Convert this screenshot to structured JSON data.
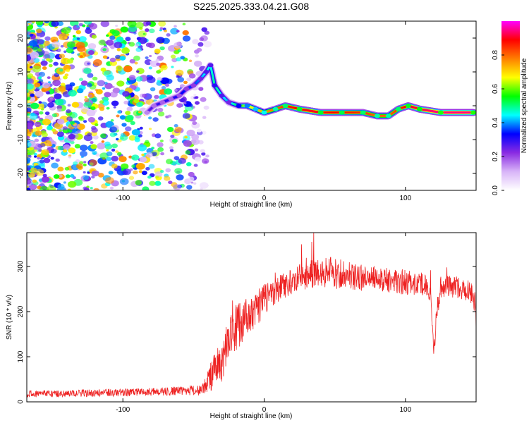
{
  "title": "S225.2025.333.04.21.G08",
  "chart_data": [
    {
      "type": "heatmap",
      "name": "spectrogram",
      "xlabel": "Height of straight line (km)",
      "ylabel": "Frequency (Hz)",
      "xlim": [
        -168,
        150
      ],
      "ylim": [
        -25,
        25
      ],
      "x_ticks": [
        -100,
        0,
        100
      ],
      "y_ticks": [
        20,
        10,
        0,
        -10,
        -20
      ],
      "x_tick_labels": [
        "-100",
        "0",
        "100"
      ],
      "y_tick_labels": [
        "20",
        "10",
        "0",
        "-10",
        "-20"
      ],
      "colorbar": {
        "label": "Normalized spectral amplitude",
        "range": [
          0,
          1
        ],
        "ticks": [
          0.0,
          0.2,
          0.4,
          0.6,
          0.8
        ],
        "tick_labels": [
          "0.0",
          "0.2",
          "0.4",
          "0.6",
          "0.8"
        ],
        "colors": [
          "#ffffff",
          "#d8b4f8",
          "#8a2be2",
          "#0000ff",
          "#00ffff",
          "#00ff00",
          "#ffff00",
          "#ff7f00",
          "#ff0000",
          "#ff00ff"
        ]
      },
      "noise_region_x": [
        -168,
        -52
      ],
      "noise_amplitude": 0.25,
      "ridge": {
        "x": [
          -83,
          -78,
          -72,
          -66,
          -60,
          -55,
          -50,
          -45,
          -41,
          -38,
          -35,
          -30,
          -25,
          -18,
          -12,
          -6,
          0,
          8,
          15,
          25,
          40,
          55,
          70,
          80,
          88,
          95,
          102,
          110,
          125,
          148
        ],
        "frequency": [
          -2,
          0,
          1,
          2,
          3,
          5,
          6,
          8,
          10,
          12,
          6,
          3,
          1,
          0,
          0,
          -1,
          -2,
          -1,
          0,
          -1,
          -2,
          -2,
          -2,
          -3,
          -3,
          -1,
          0,
          -1,
          -2,
          -2
        ],
        "amplitude": [
          0.25,
          0.28,
          0.3,
          0.3,
          0.32,
          0.35,
          0.35,
          0.4,
          0.45,
          0.45,
          0.5,
          0.45,
          0.4,
          0.55,
          0.65,
          0.7,
          0.75,
          0.8,
          0.85,
          0.9,
          0.9,
          0.88,
          0.85,
          0.8,
          0.8,
          0.85,
          0.9,
          0.92,
          0.95,
          0.95
        ]
      }
    },
    {
      "type": "line",
      "name": "snr",
      "xlabel": "Height of straight line (km)",
      "ylabel": "SNR (10 * v/v)",
      "xlim": [
        -168,
        150
      ],
      "ylim": [
        0,
        375
      ],
      "x_ticks": [
        -100,
        0,
        100
      ],
      "y_ticks": [
        0,
        100,
        200,
        300
      ],
      "x_tick_labels": [
        "-100",
        "0",
        "100"
      ],
      "y_tick_labels": [
        "0",
        "100",
        "200",
        "300"
      ],
      "color": "#ee2222",
      "series": [
        {
          "name": "SNR",
          "x": [
            -168,
            -140,
            -110,
            -80,
            -60,
            -45,
            -40,
            -35,
            -30,
            -25,
            -20,
            -15,
            -10,
            -5,
            0,
            5,
            10,
            20,
            30,
            40,
            50,
            60,
            70,
            80,
            90,
            100,
            110,
            115,
            118,
            120,
            122,
            125,
            130,
            140,
            145,
            148,
            150
          ],
          "mean": [
            18,
            18,
            20,
            22,
            24,
            26,
            45,
            70,
            90,
            140,
            165,
            180,
            195,
            210,
            225,
            240,
            250,
            270,
            285,
            290,
            285,
            280,
            275,
            272,
            268,
            265,
            262,
            260,
            230,
            100,
            200,
            255,
            258,
            250,
            245,
            240,
            190
          ],
          "noise": [
            8,
            8,
            8,
            9,
            10,
            12,
            25,
            40,
            45,
            50,
            55,
            50,
            45,
            40,
            35,
            30,
            30,
            30,
            35,
            35,
            35,
            30,
            30,
            28,
            28,
            28,
            25,
            25,
            25,
            20,
            25,
            25,
            25,
            25,
            25,
            30,
            35
          ]
        }
      ]
    }
  ]
}
